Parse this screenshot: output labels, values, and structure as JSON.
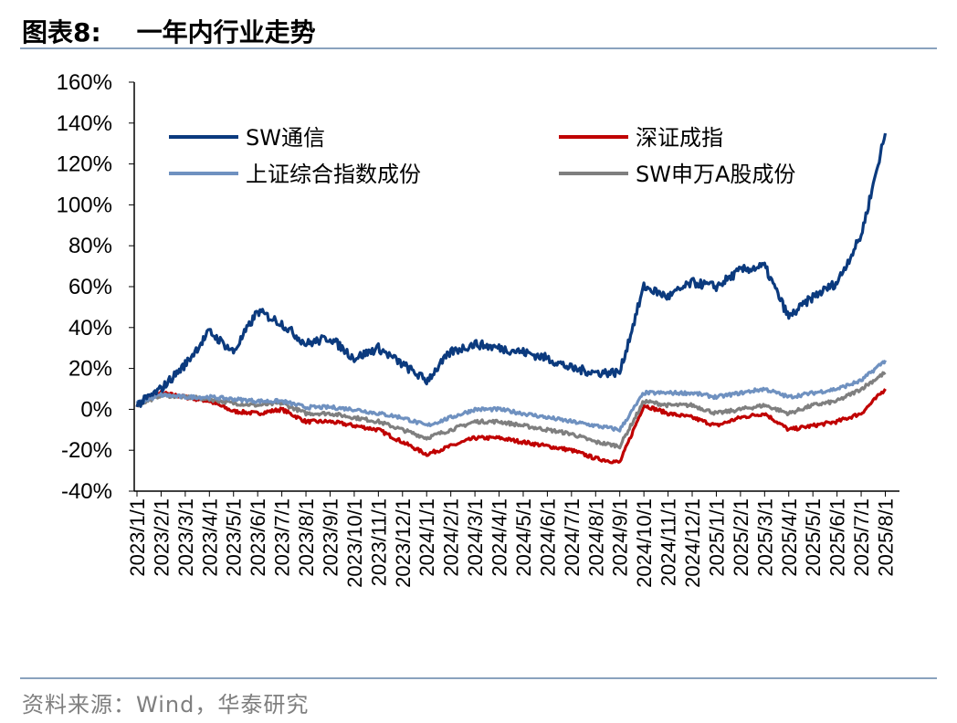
{
  "header": {
    "title": "图表8:    一年内行业走势"
  },
  "footer": {
    "source": "资料来源：Wind，华泰研究"
  },
  "chart_data": {
    "type": "line",
    "title": "一年内行业走势",
    "xlabel": "",
    "ylabel": "",
    "ylim": [
      -40,
      160
    ],
    "yticks": [
      "160%",
      "140%",
      "120%",
      "100%",
      "80%",
      "60%",
      "40%",
      "20%",
      "0%",
      "-20%",
      "-40%"
    ],
    "ytick_values": [
      160,
      140,
      120,
      100,
      80,
      60,
      40,
      20,
      0,
      -20,
      -40
    ],
    "categories": [
      "2023/1/1",
      "2023/2/1",
      "2023/3/1",
      "2023/4/1",
      "2023/5/1",
      "2023/6/1",
      "2023/7/1",
      "2023/8/1",
      "2023/9/1",
      "2023/10/1",
      "2023/11/1",
      "2023/12/1",
      "2024/1/1",
      "2024/2/1",
      "2024/3/1",
      "2024/4/1",
      "2024/5/1",
      "2024/6/1",
      "2024/7/1",
      "2024/8/1",
      "2024/9/1",
      "2024/10/1",
      "2024/11/1",
      "2024/12/1",
      "2025/1/1",
      "2025/2/1",
      "2025/3/1",
      "2025/4/1",
      "2025/5/1",
      "2025/6/1",
      "2025/7/1",
      "2025/8/1"
    ],
    "grid": false,
    "legend_position": "top",
    "series": [
      {
        "name": "SW通信",
        "color": "#0b3a7e",
        "values": [
          2,
          10,
          22,
          38,
          28,
          48,
          42,
          32,
          35,
          25,
          30,
          22,
          14,
          28,
          32,
          30,
          28,
          25,
          20,
          18,
          18,
          60,
          55,
          62,
          60,
          68,
          70,
          45,
          55,
          62,
          85,
          135
        ]
      },
      {
        "name": "深证成指",
        "color": "#c00000",
        "values": [
          2,
          8,
          6,
          4,
          -1,
          -2,
          0,
          -6,
          -6,
          -8,
          -10,
          -16,
          -22,
          -18,
          -14,
          -14,
          -16,
          -18,
          -20,
          -24,
          -26,
          2,
          -2,
          -4,
          -8,
          -4,
          -2,
          -10,
          -8,
          -6,
          -2,
          10
        ]
      },
      {
        "name": "上证综合指数成份",
        "color": "#6f91c0",
        "values": [
          3,
          7,
          6,
          6,
          5,
          4,
          4,
          1,
          1,
          0,
          -2,
          -4,
          -8,
          -4,
          0,
          0,
          -2,
          -4,
          -6,
          -8,
          -10,
          8,
          8,
          8,
          6,
          8,
          10,
          6,
          8,
          10,
          14,
          24
        ]
      },
      {
        "name": "SW申万A股成份",
        "color": "#7f7f7f",
        "values": [
          2,
          7,
          6,
          5,
          3,
          2,
          3,
          -2,
          -2,
          -4,
          -6,
          -10,
          -14,
          -10,
          -6,
          -6,
          -8,
          -10,
          -12,
          -16,
          -18,
          4,
          2,
          2,
          -2,
          0,
          2,
          -2,
          2,
          4,
          10,
          18
        ]
      }
    ]
  }
}
